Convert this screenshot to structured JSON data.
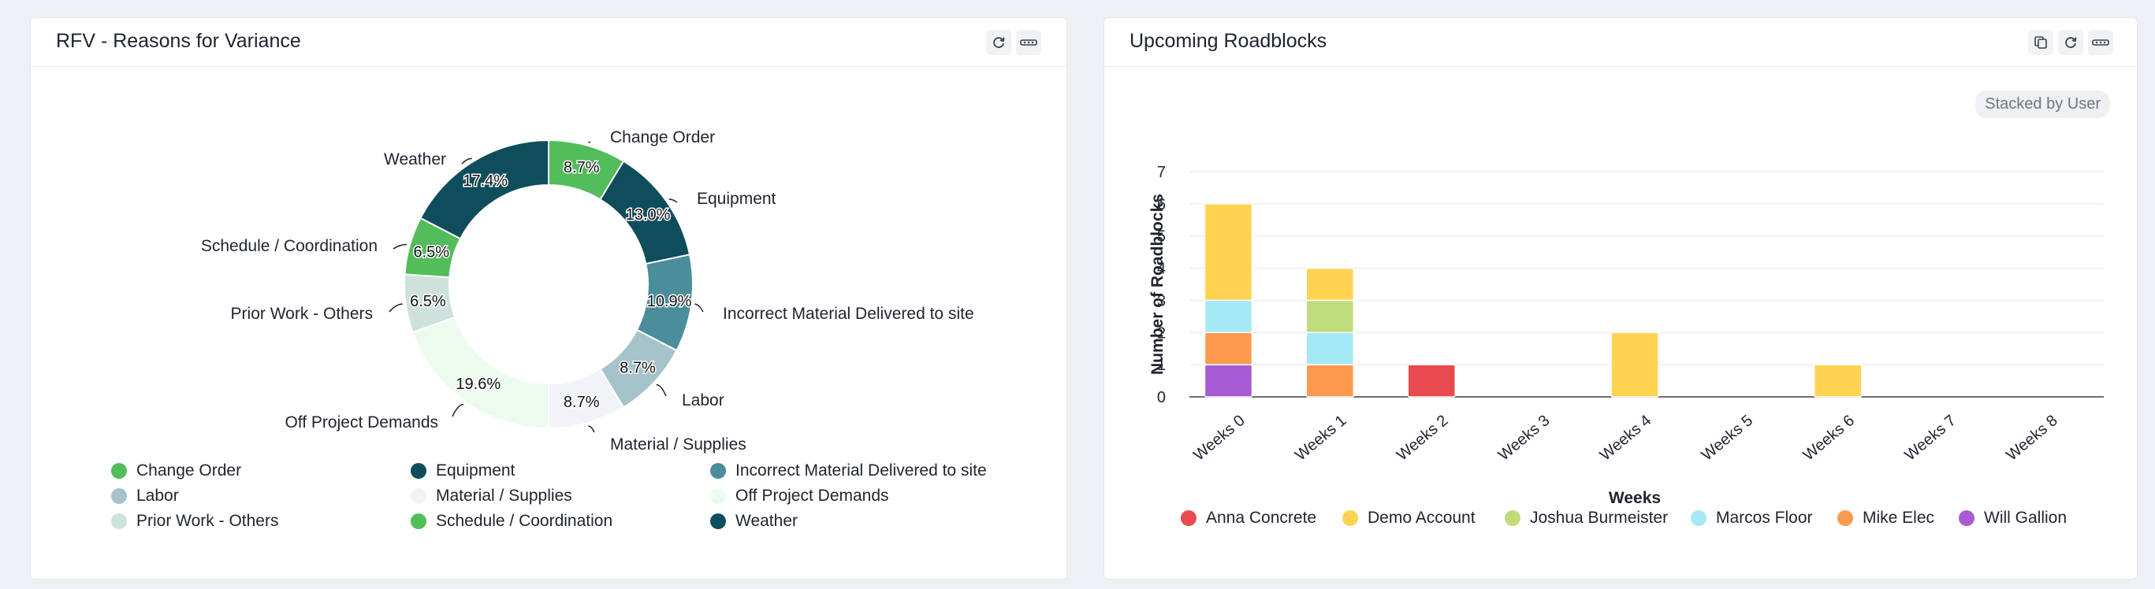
{
  "colors": {
    "change_order": "#52bd5a",
    "equipment": "#0e4d5c",
    "incorrect_material": "#4b8d9b",
    "labor": "#a6c3cb",
    "material_supplies": "#f1f3f9",
    "off_project": "#edfbef",
    "prior_work": "#cfe1dc",
    "schedule": "#52bd5a",
    "weather": "#0e4d5c",
    "anna": "#e84a4f",
    "demo": "#fdd351",
    "joshua": "#bfdc7a",
    "marcos": "#a5e9f7",
    "mike": "#fd9a4f",
    "will": "#a95bd3"
  },
  "rfv_card": {
    "title": "RFV - Reasons for Variance",
    "icons": [
      "refresh-icon",
      "more-icon"
    ],
    "chart_data": {
      "type": "pie",
      "subtype": "donut",
      "slices": [
        {
          "label": "Change Order",
          "value": 8.7,
          "value_label": "8.7%",
          "color": "#52bd5a"
        },
        {
          "label": "Equipment",
          "value": 13.0,
          "value_label": "13.0%",
          "color": "#0e4d5c"
        },
        {
          "label": "Incorrect Material Delivered to site",
          "value": 10.9,
          "value_label": "10.9%",
          "color": "#4b8d9b"
        },
        {
          "label": "Labor",
          "value": 8.7,
          "value_label": "8.7%",
          "color": "#a6c3cb"
        },
        {
          "label": "Material / Supplies",
          "value": 8.7,
          "value_label": "8.7%",
          "color": "#f1f3f9"
        },
        {
          "label": "Off Project Demands",
          "value": 19.6,
          "value_label": "19.6%",
          "color": "#edfbef"
        },
        {
          "label": "Prior Work - Others",
          "value": 6.5,
          "value_label": "6.5%",
          "color": "#cfe1dc"
        },
        {
          "label": "Schedule / Coordination",
          "value": 6.5,
          "value_label": "6.5%",
          "color": "#52bd5a"
        },
        {
          "label": "Weather",
          "value": 17.4,
          "value_label": "17.4%",
          "color": "#0e4d5c"
        }
      ],
      "legend": [
        {
          "label": "Change Order",
          "color": "#52bd5a"
        },
        {
          "label": "Equipment",
          "color": "#0e4d5c"
        },
        {
          "label": "Incorrect Material Delivered to site",
          "color": "#4b8d9b"
        },
        {
          "label": "Labor",
          "color": "#a6c3cb"
        },
        {
          "label": "Material / Supplies",
          "color": "#f1f3f9"
        },
        {
          "label": "Off Project Demands",
          "color": "#edfbef"
        },
        {
          "label": "Prior Work - Others",
          "color": "#cfe1dc"
        },
        {
          "label": "Schedule / Coordination",
          "color": "#52bd5a"
        },
        {
          "label": "Weather",
          "color": "#0e4d5c"
        }
      ]
    }
  },
  "roadblocks_card": {
    "title": "Upcoming Roadblocks",
    "icons": [
      "copy-icon",
      "refresh-icon",
      "more-icon"
    ],
    "stack_pill": "Stacked by User",
    "chart_data": {
      "type": "bar",
      "stacked": true,
      "xlabel": "Weeks",
      "ylabel": "Number of Roadblocks",
      "ylim": [
        0,
        7
      ],
      "yticks": [
        "0",
        "1",
        "2",
        "3",
        "4",
        "5",
        "6",
        "7"
      ],
      "categories": [
        "Weeks 0",
        "Weeks 1",
        "Weeks 2",
        "Weeks 3",
        "Weeks 4",
        "Weeks 5",
        "Weeks 6",
        "Weeks 7",
        "Weeks 8"
      ],
      "series": [
        {
          "name": "Will Gallion",
          "color": "#a95bd3",
          "values": [
            1,
            0,
            0,
            0,
            0,
            0,
            0,
            0,
            0
          ]
        },
        {
          "name": "Mike Elec",
          "color": "#fd9a4f",
          "values": [
            1,
            1,
            0,
            0,
            0,
            0,
            0,
            0,
            0
          ]
        },
        {
          "name": "Marcos Floor",
          "color": "#a5e9f7",
          "values": [
            1,
            1,
            0,
            0,
            0,
            0,
            0,
            0,
            0
          ]
        },
        {
          "name": "Joshua Burmeister",
          "color": "#bfdc7a",
          "values": [
            0,
            1,
            0,
            0,
            0,
            0,
            0,
            0,
            0
          ]
        },
        {
          "name": "Demo Account",
          "color": "#fdd351",
          "values": [
            3,
            1,
            0,
            0,
            2,
            0,
            1,
            0,
            0
          ]
        },
        {
          "name": "Anna Concrete",
          "color": "#e84a4f",
          "values": [
            0,
            0,
            1,
            0,
            0,
            0,
            0,
            0,
            0
          ]
        }
      ],
      "legend": [
        {
          "label": "Anna Concrete",
          "color": "#e84a4f"
        },
        {
          "label": "Demo Account",
          "color": "#fdd351"
        },
        {
          "label": "Joshua Burmeister",
          "color": "#bfdc7a"
        },
        {
          "label": "Marcos Floor",
          "color": "#a5e9f7"
        },
        {
          "label": "Mike Elec",
          "color": "#fd9a4f"
        },
        {
          "label": "Will Gallion",
          "color": "#a95bd3"
        }
      ]
    }
  }
}
